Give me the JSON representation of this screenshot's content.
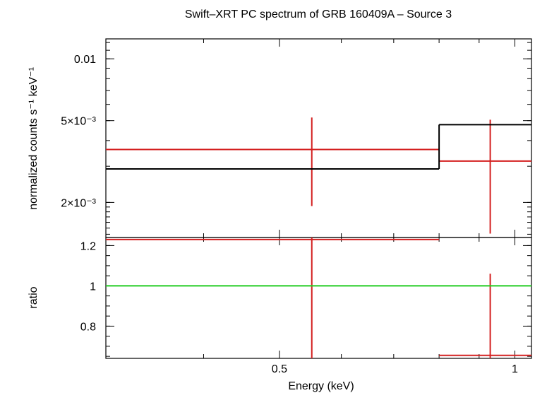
{
  "chart_data": [
    {
      "type": "line",
      "title": "Swift-XRT PC spectrum of GRB 160409A - Source 3",
      "title_display": "Swift–XRT PC spectrum of GRB 160409A – Source 3",
      "xlabel": "",
      "ylabel": "normalized counts s⁻¹ keV⁻¹",
      "x_scale": "log",
      "y_scale": "log",
      "xlim": [
        0.3,
        1.05
      ],
      "ylim": [
        0.00135,
        0.0125
      ],
      "yticks": [
        {
          "value": 0.01,
          "label": "0.01"
        },
        {
          "value": 0.005,
          "label": "5×10⁻³"
        },
        {
          "value": 0.002,
          "label": "2×10⁻³"
        }
      ],
      "series": [
        {
          "name": "",
          "color": "#d42020",
          "kind": "errorbar",
          "points": [
            {
              "x": 0.55,
              "x_lo": 0.3,
              "x_hi": 0.8,
              "y": 0.00362,
              "y_lo": 0.00192,
              "y_hi": 0.00518
            },
            {
              "x": 0.93,
              "x_lo": 0.8,
              "x_hi": 1.05,
              "y": 0.00318,
              "y_lo": 0.00141,
              "y_hi": 0.00505
            }
          ]
        },
        {
          "name": "",
          "color": "#000000",
          "kind": "step",
          "bins": [
            {
              "x_lo": 0.3,
              "x_hi": 0.8,
              "y": 0.00291
            },
            {
              "x_lo": 0.8,
              "x_hi": 1.05,
              "y": 0.00478
            }
          ]
        }
      ]
    },
    {
      "type": "line",
      "title": "",
      "xlabel": "Energy (keV)",
      "ylabel": "ratio",
      "x_scale": "log",
      "y_scale": "linear",
      "xlim": [
        0.3,
        1.05
      ],
      "ylim": [
        0.64,
        1.24
      ],
      "xticks": [
        {
          "value": 0.5,
          "label": "0.5"
        },
        {
          "value": 1,
          "label": "1"
        }
      ],
      "yticks": [
        {
          "value": 1.2,
          "label": "1.2"
        },
        {
          "value": 1,
          "label": "1"
        },
        {
          "value": 0.8,
          "label": "0.8"
        }
      ],
      "series": [
        {
          "name": "",
          "color": "#d42020",
          "kind": "errorbar",
          "points": [
            {
              "x": 0.55,
              "x_lo": 0.3,
              "x_hi": 0.8,
              "y": 1.23,
              "y_lo": 0.64,
              "y_hi": 1.24
            },
            {
              "x": 0.93,
              "x_lo": 0.8,
              "x_hi": 1.05,
              "y": 0.655,
              "y_lo": 0.64,
              "y_hi": 1.06
            }
          ]
        },
        {
          "name": "",
          "color": "#22cc22",
          "kind": "reference",
          "y": 1.0
        }
      ]
    }
  ]
}
